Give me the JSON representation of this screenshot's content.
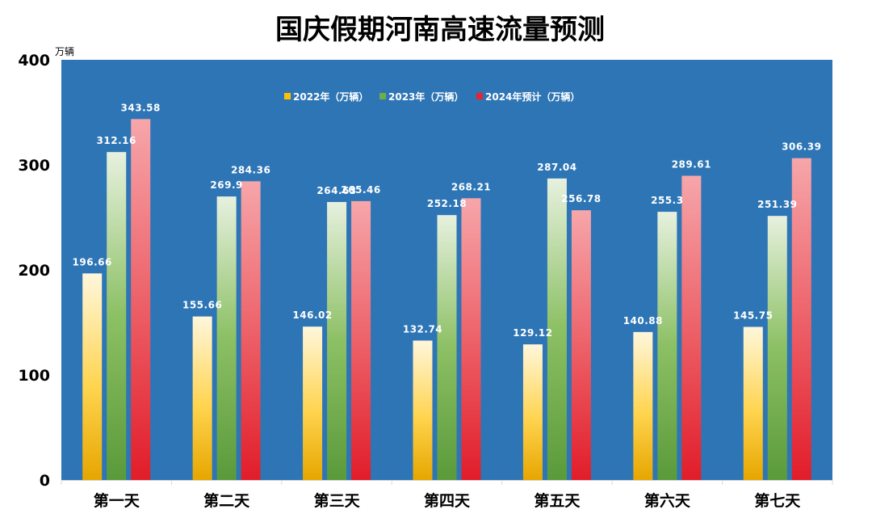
{
  "chart_data": {
    "type": "bar",
    "title": "国庆假期河南高速流量预测",
    "unit_label": "万辆",
    "ylim": [
      0,
      400
    ],
    "yticks": [
      0,
      100,
      200,
      300,
      400
    ],
    "categories": [
      "第一天",
      "第二天",
      "第三天",
      "第四天",
      "第五天",
      "第六天",
      "第七天"
    ],
    "series": [
      {
        "name": "2022年（万辆）",
        "values": [
          196.66,
          155.66,
          146.02,
          132.74,
          129.12,
          140.88,
          145.75
        ],
        "labels": [
          "196.66",
          "155.66",
          "146.02",
          "132.74",
          "129.12",
          "140.88",
          "145.75"
        ]
      },
      {
        "name": "2023年（万辆）",
        "values": [
          312.16,
          269.9,
          264.63,
          252.18,
          287.04,
          255.3,
          251.39
        ],
        "labels": [
          "312.16",
          "269.9",
          "264.63",
          "252.18",
          "287.04",
          "255.3",
          "251.39"
        ]
      },
      {
        "name": "2024年预计（万辆）",
        "values": [
          343.58,
          284.36,
          265.46,
          268.21,
          256.78,
          289.61,
          306.39
        ],
        "labels": [
          "343.58",
          "284.36",
          "265.46",
          "268.21",
          "256.78",
          "289.61",
          "306.39"
        ]
      }
    ],
    "legend_position": "top-center",
    "grid": false,
    "colors": {
      "plot_background": "#2e75b6",
      "series_2022": "#ffc000",
      "series_2023": "#70ad47",
      "series_2024": "#e8232f"
    }
  }
}
